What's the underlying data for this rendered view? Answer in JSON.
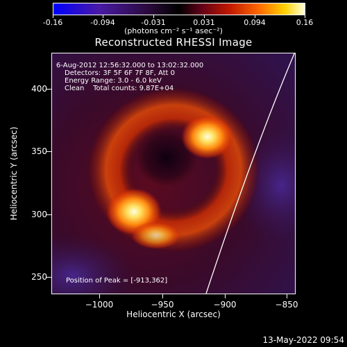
{
  "colorbar": {
    "ticks": [
      "-0.16",
      "-0.094",
      "-0.031",
      "0.031",
      "0.094",
      "0.16"
    ],
    "units": "(photons cm⁻² s⁻¹ asec⁻²)"
  },
  "title": "Reconstructed RHESSI Image",
  "info": {
    "time": "6-Aug-2012 12:56:32.000 to 13:02:32.000",
    "detectors": "Detectors: 3F 5F 6F 7F 8F, Att 0",
    "energy": "Energy Range: 3.0 - 6.0 keV",
    "clean": "Clean    Total counts: 9.87E+04",
    "peak": "Position of Peak = [-913,362]"
  },
  "axes": {
    "xlabel": "Heliocentric X (arcsec)",
    "ylabel": "Heliocentric Y (arcsec)",
    "xticks": [
      "−1000",
      "−950",
      "−900",
      "−850"
    ],
    "yticks": [
      "400",
      "350",
      "300",
      "250"
    ],
    "xlim": [
      -1038,
      -840
    ],
    "ylim": [
      238,
      428
    ]
  },
  "timestamp": "13-May-2022 09:54"
}
